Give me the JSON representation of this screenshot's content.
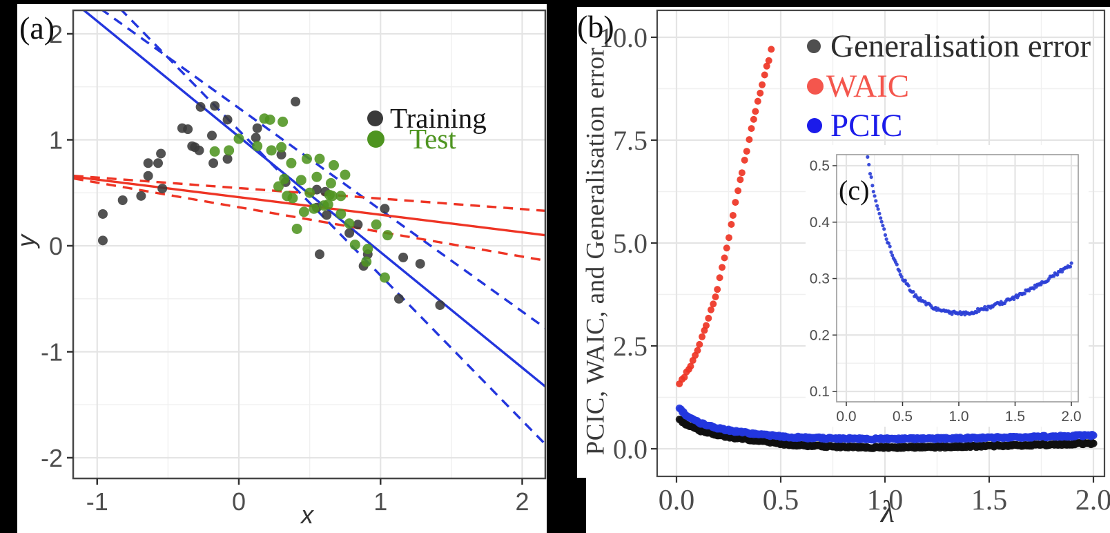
{
  "figure": {
    "panel_a_label": "(a)",
    "panel_b_label": "(b)",
    "colors": {
      "red": "#ee3424",
      "red_legend": "#f4564d",
      "blue": "#2336dd",
      "blue_legend": "#1b1bea",
      "green": "#4e9420",
      "black_point": "#3a3a3a",
      "gray_dot": "#4f4f4f",
      "dark_text": "#2e2e2e",
      "grid_major": "#e4e4e4",
      "grid_minor": "#f0f0f0",
      "border": "#474747",
      "inset_border": "#9a9a9a",
      "tick_mark": "#333333"
    }
  },
  "chart_data": [
    {
      "id": "a",
      "type": "scatter",
      "title": "",
      "xlabel": "x",
      "ylabel": "y",
      "xlim": [
        -1.165,
        2.163
      ],
      "ylim": [
        -2.2,
        2.22
      ],
      "grid": true,
      "x_ticks": {
        "values": [
          -1,
          0,
          1,
          2
        ],
        "labels": [
          "-1",
          "0",
          "1",
          "2"
        ],
        "minor": [
          -0.5,
          0.5,
          1.5
        ]
      },
      "y_ticks": {
        "values": [
          2,
          1,
          0,
          -1,
          -2
        ],
        "labels": [
          "2",
          "1",
          "0",
          "-1",
          "-2"
        ],
        "minor": [
          1.5,
          0.5,
          -0.5,
          -1.5
        ]
      },
      "legend": [
        {
          "label": "Training",
          "series": "training"
        },
        {
          "label": "Test",
          "series": "test"
        }
      ],
      "series": [
        {
          "name": "training",
          "color_key": "black_point",
          "r": 7,
          "points": [
            [
              -0.96,
              0.05
            ],
            [
              -0.96,
              0.3
            ],
            [
              -0.82,
              0.43
            ],
            [
              -0.69,
              0.47
            ],
            [
              -0.64,
              0.78
            ],
            [
              -0.64,
              0.66
            ],
            [
              -0.57,
              0.78
            ],
            [
              -0.55,
              0.87
            ],
            [
              -0.54,
              0.54
            ],
            [
              -0.4,
              1.11
            ],
            [
              -0.36,
              1.1
            ],
            [
              -0.33,
              0.94
            ],
            [
              -0.31,
              0.93
            ],
            [
              -0.28,
              0.9
            ],
            [
              -0.27,
              1.31
            ],
            [
              -0.19,
              1.04
            ],
            [
              -0.18,
              0.78
            ],
            [
              -0.17,
              1.32
            ],
            [
              -0.08,
              1.19
            ],
            [
              -0.08,
              0.82
            ],
            [
              0.12,
              1.02
            ],
            [
              0.13,
              1.11
            ],
            [
              0.3,
              0.86
            ],
            [
              0.33,
              0.6
            ],
            [
              0.4,
              1.36
            ],
            [
              0.55,
              0.53
            ],
            [
              0.55,
              0.36
            ],
            [
              0.57,
              -0.08
            ],
            [
              0.61,
              0.51
            ],
            [
              0.62,
              0.29
            ],
            [
              0.78,
              0.12
            ],
            [
              0.84,
              0.2
            ],
            [
              0.88,
              -0.19
            ],
            [
              0.91,
              -0.08
            ],
            [
              1.03,
              0.35
            ],
            [
              1.13,
              -0.5
            ],
            [
              1.16,
              -0.11
            ],
            [
              1.28,
              -0.17
            ],
            [
              1.42,
              -0.56
            ]
          ]
        },
        {
          "name": "test",
          "color_key": "green",
          "r": 7.5,
          "points": [
            [
              -0.17,
              0.89
            ],
            [
              -0.07,
              0.9
            ],
            [
              0.0,
              1.01
            ],
            [
              0.13,
              0.94
            ],
            [
              0.18,
              1.2
            ],
            [
              0.22,
              1.19
            ],
            [
              0.31,
              1.17
            ],
            [
              0.23,
              0.9
            ],
            [
              0.28,
              0.56
            ],
            [
              0.3,
              0.93
            ],
            [
              0.32,
              0.63
            ],
            [
              0.34,
              0.47
            ],
            [
              0.37,
              0.78
            ],
            [
              0.38,
              0.45
            ],
            [
              0.41,
              0.16
            ],
            [
              0.44,
              0.62
            ],
            [
              0.46,
              0.32
            ],
            [
              0.48,
              0.82
            ],
            [
              0.5,
              0.5
            ],
            [
              0.53,
              0.35
            ],
            [
              0.55,
              0.65
            ],
            [
              0.57,
              0.82
            ],
            [
              0.6,
              0.38
            ],
            [
              0.63,
              0.39
            ],
            [
              0.64,
              0.48
            ],
            [
              0.65,
              0.59
            ],
            [
              0.66,
              0.47
            ],
            [
              0.67,
              0.76
            ],
            [
              0.72,
              0.47
            ],
            [
              0.72,
              0.3
            ],
            [
              0.75,
              0.67
            ],
            [
              0.78,
              0.21
            ],
            [
              0.82,
              0.01
            ],
            [
              0.9,
              -0.15
            ],
            [
              0.91,
              -0.03
            ],
            [
              0.97,
              0.2
            ],
            [
              1.03,
              -0.3
            ],
            [
              1.05,
              0.1
            ]
          ]
        }
      ],
      "lines": [
        {
          "name": "blue-fit-solid",
          "color_key": "blue",
          "dash": false,
          "endpoints": [
            [
              -1.165,
              2.3
            ],
            [
              2.163,
              -1.328
            ]
          ]
        },
        {
          "name": "blue-fit-dashed-upper",
          "color_key": "blue",
          "dash": true,
          "endpoints": [
            [
              -1.165,
              2.418
            ],
            [
              2.163,
              -0.777
            ]
          ]
        },
        {
          "name": "blue-fit-dashed-lower",
          "color_key": "blue",
          "dash": true,
          "endpoints": [
            [
              -1.165,
              2.686
            ],
            [
              2.163,
              -1.873
            ]
          ]
        },
        {
          "name": "red-fit-solid",
          "color_key": "red",
          "dash": false,
          "endpoints": [
            [
              -1.165,
              0.652
            ],
            [
              2.163,
              0.1
            ]
          ]
        },
        {
          "name": "red-fit-dashed-upper",
          "color_key": "red",
          "dash": true,
          "endpoints": [
            [
              -1.165,
              0.66
            ],
            [
              2.163,
              0.33
            ]
          ]
        },
        {
          "name": "red-fit-dashed-lower",
          "color_key": "red",
          "dash": true,
          "endpoints": [
            [
              -1.165,
              0.635
            ],
            [
              2.163,
              -0.14
            ]
          ]
        }
      ]
    },
    {
      "id": "b",
      "type": "scatter",
      "title": "",
      "xlabel": "λ",
      "ylabel": "PCIC, WAIC, and Generalisation error",
      "xlim": [
        -0.09,
        2.05
      ],
      "ylim": [
        -0.67,
        10.6
      ],
      "grid": true,
      "x_ticks": {
        "values": [
          0,
          0.5,
          1,
          1.5,
          2
        ],
        "labels": [
          "0.0",
          "0.5",
          "1.0",
          "1.5",
          "2.0"
        ],
        "minor": [
          0.25,
          0.75,
          1.25,
          1.75
        ]
      },
      "y_ticks": {
        "values": [
          0,
          2.5,
          5,
          7.5,
          10
        ],
        "labels": [
          "0.0",
          "2.5",
          "5.0",
          "7.5",
          "10.0"
        ],
        "minor": [
          1.25,
          3.75,
          6.25,
          8.75
        ]
      },
      "legend": [
        {
          "label": "Generalisation error",
          "dot_color_key": "gray_dot",
          "text_color_key": "dark_text",
          "dot_r": 10
        },
        {
          "label": "WAIC",
          "dot_color_key": "red_legend",
          "text_color_key": "red_legend",
          "dot_r": 12
        },
        {
          "label": "PCIC",
          "dot_color_key": "blue_legend",
          "text_color_key": "blue_legend",
          "dot_r": 11
        }
      ],
      "series": [
        {
          "name": "generalisation-error",
          "color": "#0f0f0f",
          "r": 5.5,
          "n": 330,
          "lambda_range": [
            0.015,
            2.0
          ],
          "jitter_v": 0.045,
          "jitter_l": 0.002,
          "anchors": [
            [
              0.015,
              0.7
            ],
            [
              0.05,
              0.585
            ],
            [
              0.08,
              0.505
            ],
            [
              0.12,
              0.433
            ],
            [
              0.16,
              0.378
            ],
            [
              0.2,
              0.335
            ],
            [
              0.25,
              0.29
            ],
            [
              0.3,
              0.25
            ],
            [
              0.35,
              0.215
            ],
            [
              0.4,
              0.185
            ],
            [
              0.45,
              0.16
            ],
            [
              0.5,
              0.12
            ],
            [
              0.6,
              0.085
            ],
            [
              0.7,
              0.06
            ],
            [
              0.8,
              0.045
            ],
            [
              0.9,
              0.035
            ],
            [
              1.0,
              0.03
            ],
            [
              1.1,
              0.032
            ],
            [
              1.2,
              0.038
            ],
            [
              1.3,
              0.046
            ],
            [
              1.4,
              0.056
            ],
            [
              1.5,
              0.068
            ],
            [
              1.6,
              0.08
            ],
            [
              1.7,
              0.092
            ],
            [
              1.8,
              0.105
            ],
            [
              1.9,
              0.118
            ],
            [
              2.0,
              0.13
            ]
          ]
        },
        {
          "name": "pcic",
          "color": "#2336dd",
          "r": 5.5,
          "n": 330,
          "lambda_range": [
            0.015,
            2.0
          ],
          "jitter_v": 0.045,
          "jitter_l": 0.002,
          "anchors": [
            [
              0.015,
              0.97
            ],
            [
              0.05,
              0.8
            ],
            [
              0.08,
              0.7
            ],
            [
              0.12,
              0.615
            ],
            [
              0.16,
              0.55
            ],
            [
              0.2,
              0.5
            ],
            [
              0.25,
              0.448
            ],
            [
              0.3,
              0.408
            ],
            [
              0.35,
              0.376
            ],
            [
              0.4,
              0.347
            ],
            [
              0.45,
              0.322
            ],
            [
              0.5,
              0.301
            ],
            [
              0.6,
              0.272
            ],
            [
              0.7,
              0.256
            ],
            [
              0.8,
              0.246
            ],
            [
              0.9,
              0.24
            ],
            [
              1.0,
              0.238
            ],
            [
              1.1,
              0.24
            ],
            [
              1.2,
              0.245
            ],
            [
              1.3,
              0.251
            ],
            [
              1.4,
              0.258
            ],
            [
              1.5,
              0.267
            ],
            [
              1.6,
              0.277
            ],
            [
              1.7,
              0.288
            ],
            [
              1.8,
              0.3
            ],
            [
              1.9,
              0.312
            ],
            [
              2.0,
              0.325
            ]
          ]
        },
        {
          "name": "waic",
          "color": "#ee3424",
          "r": 5,
          "n": 42,
          "lambda_range": [
            0.015,
            0.455
          ],
          "jitter_v": 0.06,
          "jitter_l": 0.003,
          "anchors": [
            [
              0.015,
              1.56
            ],
            [
              0.06,
              1.95
            ],
            [
              0.1,
              2.38
            ],
            [
              0.14,
              2.94
            ],
            [
              0.185,
              3.67
            ],
            [
              0.215,
              4.3
            ],
            [
              0.25,
              5.1
            ],
            [
              0.29,
              6.16
            ],
            [
              0.33,
              7.1
            ],
            [
              0.37,
              8.0
            ],
            [
              0.41,
              8.85
            ],
            [
              0.44,
              9.4
            ],
            [
              0.455,
              9.7
            ]
          ]
        }
      ],
      "inset": {
        "label": "(c)",
        "series_name": "pcic-detail",
        "uses_series": "pcic",
        "color": "#2b3fd6",
        "r": 2.6,
        "n": 175,
        "lambda_range": [
          0.19,
          2.0
        ],
        "jitter_v": 0.0065,
        "xlim": [
          -0.086,
          2.06
        ],
        "ylim": [
          0.082,
          0.52
        ],
        "x_ticks": {
          "values": [
            0,
            0.5,
            1,
            1.5,
            2
          ],
          "labels": [
            "0.0",
            "0.5",
            "1.0",
            "1.5",
            "2.0"
          ],
          "minor": [
            0.25,
            0.75,
            1.25,
            1.75
          ]
        },
        "y_ticks": {
          "values": [
            0.5,
            0.4,
            0.3,
            0.2,
            0.1
          ],
          "labels": [
            "0.5",
            "0.4",
            "0.3",
            "0.2",
            "0.1"
          ],
          "minor": [
            0.45,
            0.35,
            0.25,
            0.15
          ]
        }
      }
    }
  ]
}
